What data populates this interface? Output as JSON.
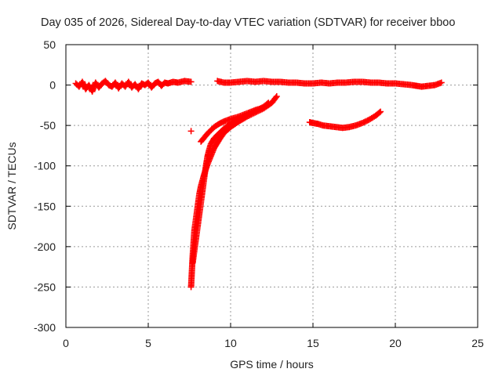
{
  "chart_data": {
    "type": "scatter",
    "title": "Day 035 of 2026, Sidereal Day-to-day VTEC variation (SDTVAR) for receiver bboo",
    "xlabel": "GPS time / hours",
    "ylabel": "SDTVAR / TECUs",
    "xlim": [
      0,
      25
    ],
    "ylim": [
      -300,
      50
    ],
    "x_ticks": [
      0,
      5,
      10,
      15,
      20,
      25
    ],
    "y_ticks": [
      50,
      0,
      -50,
      -100,
      -150,
      -200,
      -250,
      -300
    ],
    "grid": true,
    "marker": "+",
    "series_color": "#ff0000",
    "series": [
      {
        "name": "near-zero band A",
        "points": [
          [
            0.6,
            2
          ],
          [
            0.8,
            -2
          ],
          [
            1.0,
            4
          ],
          [
            1.2,
            -5
          ],
          [
            1.4,
            0
          ],
          [
            1.6,
            -8
          ],
          [
            1.8,
            3
          ],
          [
            2.0,
            -3
          ],
          [
            2.2,
            2
          ],
          [
            2.4,
            5
          ],
          [
            2.6,
            0
          ],
          [
            2.8,
            -2
          ],
          [
            3.0,
            3
          ],
          [
            3.2,
            -4
          ],
          [
            3.4,
            2
          ],
          [
            3.6,
            -2
          ],
          [
            3.8,
            4
          ],
          [
            4.0,
            -3
          ],
          [
            4.2,
            1
          ],
          [
            4.4,
            -5
          ],
          [
            4.6,
            2
          ],
          [
            4.8,
            0
          ],
          [
            5.0,
            3
          ],
          [
            5.2,
            -3
          ],
          [
            5.4,
            2
          ],
          [
            5.6,
            4
          ],
          [
            5.8,
            -1
          ],
          [
            6.0,
            3
          ],
          [
            6.2,
            2
          ],
          [
            6.5,
            4
          ],
          [
            6.8,
            3
          ],
          [
            7.2,
            5
          ],
          [
            7.6,
            4
          ]
        ]
      },
      {
        "name": "near-zero band B",
        "points": [
          [
            9.2,
            5
          ],
          [
            9.6,
            3
          ],
          [
            10.0,
            3
          ],
          [
            10.5,
            4
          ],
          [
            11.0,
            5
          ],
          [
            11.5,
            4
          ],
          [
            12.0,
            5
          ],
          [
            12.5,
            4
          ],
          [
            13.0,
            4
          ],
          [
            13.5,
            3
          ],
          [
            14.0,
            3
          ],
          [
            14.5,
            2
          ],
          [
            15.0,
            2
          ],
          [
            15.5,
            3
          ],
          [
            16.0,
            2
          ],
          [
            16.5,
            3
          ],
          [
            17.0,
            3
          ],
          [
            17.5,
            4
          ],
          [
            18.0,
            4
          ],
          [
            18.5,
            3
          ],
          [
            19.0,
            3
          ],
          [
            19.5,
            2
          ],
          [
            20.0,
            2
          ],
          [
            20.5,
            1
          ],
          [
            21.0,
            0
          ],
          [
            21.3,
            -1
          ],
          [
            21.6,
            -2
          ],
          [
            22.0,
            -1
          ],
          [
            22.4,
            0
          ],
          [
            22.8,
            3
          ]
        ]
      },
      {
        "name": "descending arc 1",
        "points": [
          [
            7.6,
            -250
          ],
          [
            7.65,
            -230
          ],
          [
            7.7,
            -210
          ],
          [
            7.75,
            -195
          ],
          [
            7.8,
            -180
          ],
          [
            7.9,
            -165
          ],
          [
            8.0,
            -150
          ],
          [
            8.1,
            -135
          ],
          [
            8.2,
            -125
          ],
          [
            8.4,
            -110
          ],
          [
            8.6,
            -98
          ],
          [
            8.8,
            -88
          ],
          [
            9.0,
            -78
          ],
          [
            9.3,
            -68
          ],
          [
            9.6,
            -59
          ],
          [
            10.0,
            -52
          ],
          [
            10.5,
            -45
          ],
          [
            11.0,
            -39
          ],
          [
            11.5,
            -34
          ],
          [
            12.0,
            -29
          ],
          [
            12.5,
            -22
          ],
          [
            12.8,
            -14
          ]
        ]
      },
      {
        "name": "descending arc 2",
        "points": [
          [
            7.7,
            -220
          ],
          [
            7.8,
            -205
          ],
          [
            7.9,
            -190
          ],
          [
            8.0,
            -175
          ],
          [
            8.1,
            -160
          ],
          [
            8.2,
            -145
          ],
          [
            8.3,
            -130
          ],
          [
            8.4,
            -115
          ],
          [
            8.5,
            -100
          ],
          [
            8.6,
            -88
          ],
          [
            8.7,
            -80
          ],
          [
            8.8,
            -73
          ],
          [
            9.0,
            -66
          ],
          [
            9.3,
            -60
          ],
          [
            9.6,
            -54
          ],
          [
            10.0,
            -48
          ],
          [
            10.5,
            -42
          ],
          [
            11.0,
            -37
          ],
          [
            11.5,
            -32
          ],
          [
            12.0,
            -27
          ],
          [
            12.3,
            -22
          ]
        ]
      },
      {
        "name": "upper branch",
        "points": [
          [
            8.2,
            -70
          ],
          [
            8.4,
            -65
          ],
          [
            8.6,
            -60
          ],
          [
            8.8,
            -56
          ],
          [
            9.0,
            -52
          ],
          [
            9.3,
            -48
          ],
          [
            9.6,
            -45
          ],
          [
            10.0,
            -42
          ],
          [
            10.5,
            -39
          ],
          [
            11.0,
            -35
          ],
          [
            11.5,
            -31
          ],
          [
            12.0,
            -28
          ]
        ]
      },
      {
        "name": "isolated point",
        "points": [
          [
            7.6,
            -57
          ]
        ]
      },
      {
        "name": "dip arc",
        "points": [
          [
            14.8,
            -46
          ],
          [
            15.0,
            -47
          ],
          [
            15.3,
            -48
          ],
          [
            15.6,
            -50
          ],
          [
            16.0,
            -51
          ],
          [
            16.4,
            -52
          ],
          [
            16.8,
            -53
          ],
          [
            17.2,
            -52
          ],
          [
            17.6,
            -50
          ],
          [
            18.0,
            -47
          ],
          [
            18.4,
            -43
          ],
          [
            18.8,
            -38
          ],
          [
            19.1,
            -33
          ]
        ]
      }
    ]
  }
}
